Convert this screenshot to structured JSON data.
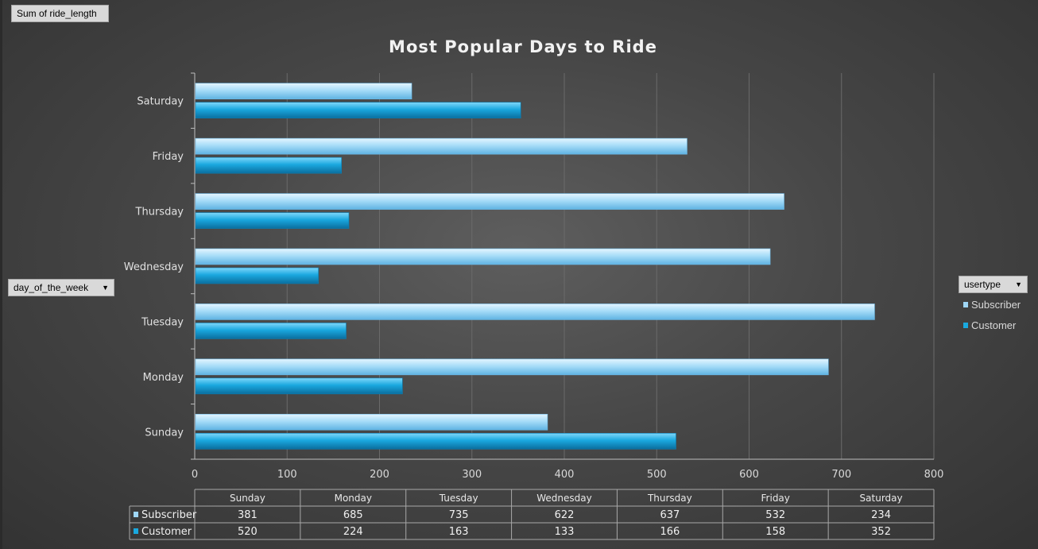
{
  "field_buttons": {
    "value_field": "Sum of ride_length",
    "axis_field": "day_of_the_week",
    "legend_field": "usertype"
  },
  "colors": {
    "subscriber": "#9fd6f5",
    "customer": "#19a9df",
    "background": "#474747"
  },
  "chart_data": {
    "type": "bar",
    "orientation": "horizontal",
    "title": "Most Popular Days to Ride",
    "categories": [
      "Sunday",
      "Monday",
      "Tuesday",
      "Wednesday",
      "Thursday",
      "Friday",
      "Saturday"
    ],
    "series": [
      {
        "name": "Subscriber",
        "values": [
          381,
          685,
          735,
          622,
          637,
          532,
          234
        ]
      },
      {
        "name": "Customer",
        "values": [
          520,
          224,
          163,
          133,
          166,
          158,
          352
        ]
      }
    ],
    "xlim": [
      0,
      800
    ],
    "xticks": [
      0,
      100,
      200,
      300,
      400,
      500,
      600,
      700,
      800
    ],
    "grid": true,
    "legend": "right",
    "data_table": true
  }
}
